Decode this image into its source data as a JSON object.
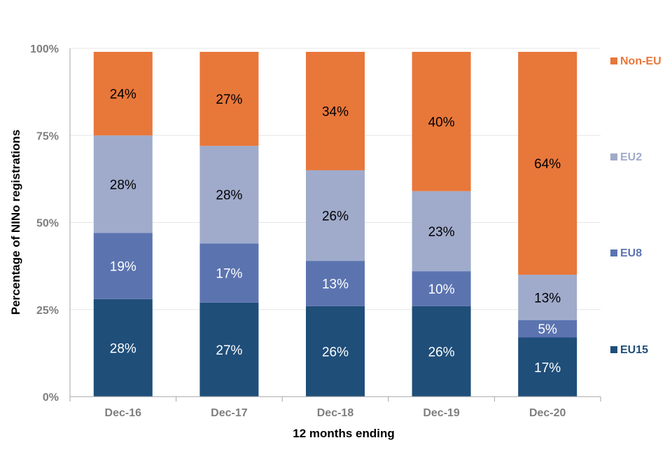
{
  "chart_data": {
    "type": "bar",
    "stacked": true,
    "title": "",
    "xlabel": "12 months ending",
    "ylabel": "Percentage of NINo registrations",
    "ylim": [
      0,
      100
    ],
    "yticks": [
      "0%",
      "25%",
      "50%",
      "75%",
      "100%"
    ],
    "grid": true,
    "legend_position": "right",
    "categories": [
      "Dec-16",
      "Dec-17",
      "Dec-18",
      "Dec-19",
      "Dec-20"
    ],
    "series": [
      {
        "name": "EU15",
        "color": "#1f4e79",
        "label_color": "#ffffff",
        "values": [
          28,
          27,
          26,
          26,
          17
        ],
        "labels": [
          "28%",
          "27%",
          "26%",
          "26%",
          "17%"
        ]
      },
      {
        "name": "EU8",
        "color": "#5b74b0",
        "label_color": "#ffffff",
        "values": [
          19,
          17,
          13,
          10,
          5
        ],
        "labels": [
          "19%",
          "17%",
          "13%",
          "10%",
          "5%"
        ]
      },
      {
        "name": "EU2",
        "color": "#a0abcb",
        "label_color": "#000000",
        "values": [
          28,
          28,
          26,
          23,
          13
        ],
        "labels": [
          "28%",
          "28%",
          "26%",
          "23%",
          "13%"
        ]
      },
      {
        "name": "Non-EU",
        "color": "#e8773a",
        "label_color": "#000000",
        "values": [
          24,
          27,
          34,
          40,
          64
        ],
        "labels": [
          "24%",
          "27%",
          "34%",
          "40%",
          "64%"
        ]
      }
    ]
  }
}
